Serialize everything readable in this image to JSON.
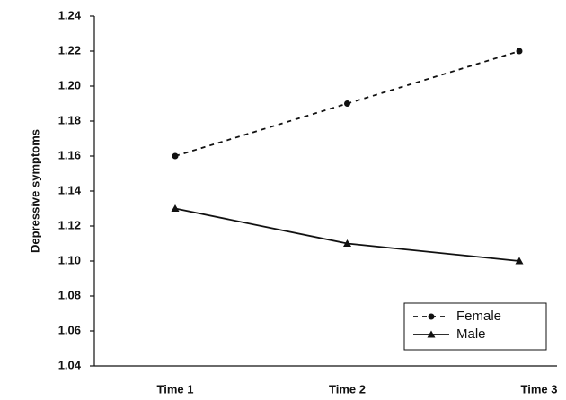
{
  "chart_data": {
    "type": "line",
    "y_label": "Depressive symptoms",
    "categories": [
      "Time 1",
      "Time 2",
      "Time 3"
    ],
    "series": [
      {
        "name": "Female",
        "color": "#111111",
        "dash": true,
        "marker": "circle",
        "values": [
          1.16,
          1.19,
          1.22
        ]
      },
      {
        "name": "Male",
        "color": "#111111",
        "dash": false,
        "marker": "triangle",
        "values": [
          1.13,
          1.11,
          1.1
        ]
      }
    ],
    "ylim": [
      1.04,
      1.24
    ],
    "yticks": [
      1.04,
      1.06,
      1.08,
      {
        "value": 1.1,
        "label": "1.10"
      },
      1.12,
      1.14,
      1.16,
      1.18,
      {
        "value": 1.2,
        "label": "1.20"
      },
      1.22,
      1.24
    ],
    "grid": false,
    "legend": "lower right"
  }
}
